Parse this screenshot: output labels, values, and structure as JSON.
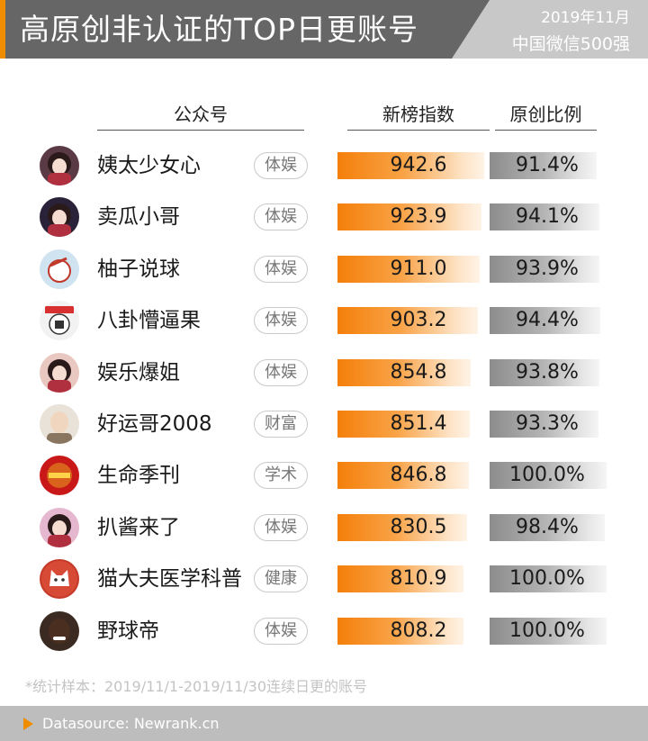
{
  "header": {
    "title": "高原创非认证的TOP日更账号",
    "date": "2019年11月",
    "subtitle": "中国微信500强"
  },
  "columns": {
    "account": "公众号",
    "index": "新榜指数",
    "ratio": "原创比例"
  },
  "chart_data": {
    "type": "table",
    "title": "高原创非认证的TOP日更账号",
    "columns": [
      "公众号",
      "新榜指数",
      "原创比例"
    ],
    "index_range": [
      0,
      942.6
    ],
    "ratio_range": [
      0,
      100
    ],
    "rows": [
      {
        "name": "姨太少女心",
        "tag": "体娱",
        "index": 942.6,
        "index_label": "942.6",
        "ratio": 91.4,
        "ratio_label": "91.4%",
        "avatar_icon": "girl-avatar-icon",
        "avatar_bg": "#5a3a44"
      },
      {
        "name": "卖瓜小哥",
        "tag": "体娱",
        "index": 923.9,
        "index_label": "923.9",
        "ratio": 94.1,
        "ratio_label": "94.1%",
        "avatar_icon": "girl-avatar-icon",
        "avatar_bg": "#2a2238"
      },
      {
        "name": "柚子说球",
        "tag": "体娱",
        "index": 911.0,
        "index_label": "911.0",
        "ratio": 93.9,
        "ratio_label": "93.9%",
        "avatar_icon": "ball-avatar-icon",
        "avatar_bg": "#cfe3f0"
      },
      {
        "name": "八卦懵逼果",
        "tag": "体娱",
        "index": 903.2,
        "index_label": "903.2",
        "ratio": 94.4,
        "ratio_label": "94.4%",
        "avatar_icon": "character-avatar-icon",
        "avatar_bg": "#f2f2f2"
      },
      {
        "name": "娱乐爆姐",
        "tag": "体娱",
        "index": 854.8,
        "index_label": "854.8",
        "ratio": 93.8,
        "ratio_label": "93.8%",
        "avatar_icon": "girl-avatar-icon",
        "avatar_bg": "#e8c8c0"
      },
      {
        "name": "好运哥2008",
        "tag": "财富",
        "index": 851.4,
        "index_label": "851.4",
        "ratio": 93.3,
        "ratio_label": "93.3%",
        "avatar_icon": "man-avatar-icon",
        "avatar_bg": "#e9e2d8"
      },
      {
        "name": "生命季刊",
        "tag": "学术",
        "index": 846.8,
        "index_label": "846.8",
        "ratio": 100.0,
        "ratio_label": "100.0%",
        "avatar_icon": "journal-avatar-icon",
        "avatar_bg": "#c81818"
      },
      {
        "name": "扒酱来了",
        "tag": "体娱",
        "index": 830.5,
        "index_label": "830.5",
        "ratio": 98.4,
        "ratio_label": "98.4%",
        "avatar_icon": "girl-avatar-icon",
        "avatar_bg": "#e6b8cf"
      },
      {
        "name": "猫大夫医学科普",
        "tag": "健康",
        "index": 810.9,
        "index_label": "810.9",
        "ratio": 100.0,
        "ratio_label": "100.0%",
        "avatar_icon": "cat-avatar-icon",
        "avatar_bg": "#c63a2a"
      },
      {
        "name": "野球帝",
        "tag": "体娱",
        "index": 808.2,
        "index_label": "808.2",
        "ratio": 100.0,
        "ratio_label": "100.0%",
        "avatar_icon": "player-avatar-icon",
        "avatar_bg": "#3a2a22"
      }
    ]
  },
  "note": "*统计样本：2019/11/1-2019/11/30连续日更的账号",
  "footer": "Datasource: Newrank.cn",
  "colors": {
    "header_bg": "#666666",
    "accent": "#f08c00",
    "index_bar": "#f47f0a",
    "ratio_bar": "#8c8c8c"
  }
}
